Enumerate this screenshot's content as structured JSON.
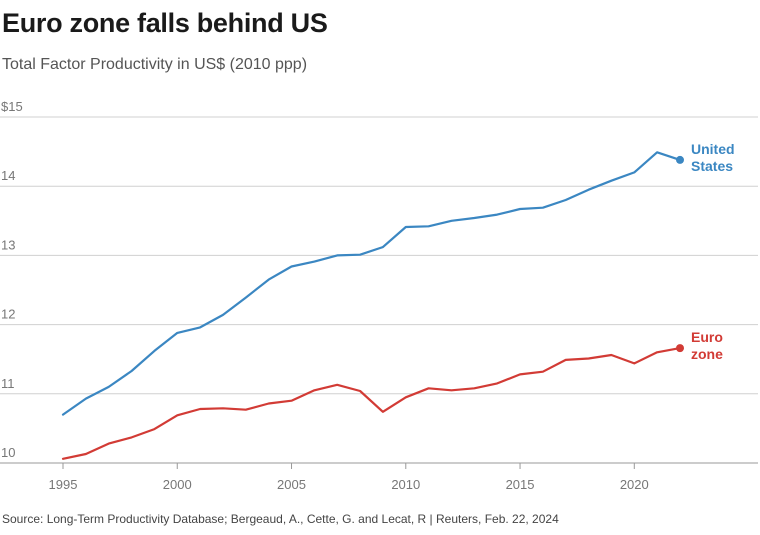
{
  "header": {
    "title": "Euro zone falls behind US",
    "subtitle": "Total Factor Productivity in US$ (2010 ppp)"
  },
  "footer": {
    "source": "Source: Long-Term Productivity Database; Bergeaud, A., Cette, G. and Lecat, R | Reuters, Feb. 22, 2024"
  },
  "colors": {
    "us": "#3b87c2",
    "euro": "#d23b35",
    "grid": "#d0d0d0",
    "axis": "#999999"
  },
  "chart_data": {
    "type": "line",
    "title": "Euro zone falls behind US",
    "subtitle": "Total Factor Productivity in US$ (2010 ppp)",
    "xlabel": "",
    "ylabel": "",
    "x": [
      1995,
      1996,
      1997,
      1998,
      1999,
      2000,
      2001,
      2002,
      2003,
      2004,
      2005,
      2006,
      2007,
      2008,
      2009,
      2010,
      2011,
      2012,
      2013,
      2014,
      2015,
      2016,
      2017,
      2018,
      2019,
      2020,
      2021,
      2022
    ],
    "xlim": [
      1994,
      2025
    ],
    "ylim": [
      10,
      15
    ],
    "xticks": [
      1995,
      2000,
      2005,
      2010,
      2015,
      2020
    ],
    "xtick_labels": [
      "1995",
      "2000",
      "2005",
      "2010",
      "2015",
      "2020"
    ],
    "yticks": [
      10,
      11,
      12,
      13,
      14,
      15
    ],
    "ytick_labels": [
      "10",
      "11",
      "12",
      "13",
      "14",
      "$15"
    ],
    "grid": true,
    "legend": "direct labels at line ends",
    "series": [
      {
        "key": "us",
        "label_lines": [
          "United",
          "States"
        ],
        "color": "#3b87c2",
        "values": [
          10.7,
          10.93,
          11.1,
          11.33,
          11.62,
          11.88,
          11.96,
          12.14,
          12.39,
          12.65,
          12.84,
          12.91,
          13.0,
          13.01,
          13.12,
          13.41,
          13.42,
          13.5,
          13.54,
          13.59,
          13.67,
          13.69,
          13.8,
          13.95,
          14.08,
          14.2,
          14.49,
          14.38
        ]
      },
      {
        "key": "euro",
        "label_lines": [
          "Euro",
          "zone"
        ],
        "color": "#d23b35",
        "values": [
          10.06,
          10.13,
          10.28,
          10.37,
          10.49,
          10.69,
          10.78,
          10.79,
          10.77,
          10.86,
          10.9,
          11.05,
          11.13,
          11.04,
          10.74,
          10.95,
          11.08,
          11.05,
          11.08,
          11.15,
          11.28,
          11.32,
          11.49,
          11.51,
          11.56,
          11.44,
          11.6,
          11.66
        ]
      }
    ]
  }
}
